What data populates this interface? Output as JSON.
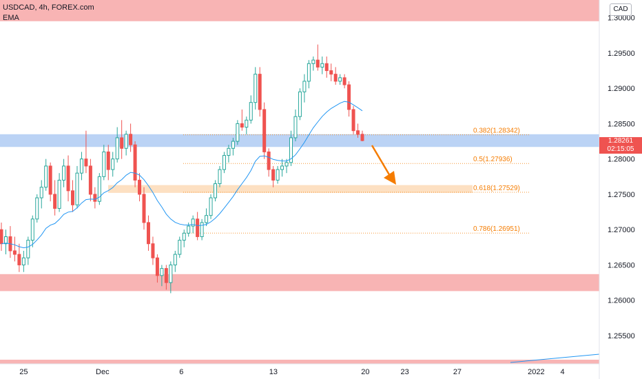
{
  "header": {
    "symbol": "USDCAD, 4h, FOREX.com",
    "indicator": "EMA"
  },
  "currency": "CAD",
  "last_price": {
    "value": "1.28261",
    "countdown": "02:15:05"
  },
  "colors": {
    "up": "#26a69a",
    "down": "#ef5350",
    "candle_up_body": "#ffffff",
    "candle_down_body": "#ef5350",
    "ema": "#2196f3",
    "fib": "#f57c00",
    "zone_red": "#f8b4b4",
    "zone_blue": "#bbd3f5",
    "zone_orange": "#fde0c2"
  },
  "chart_data": {
    "type": "candlestick",
    "title": "USDCAD, 4h, FOREX.com",
    "indicators": [
      "EMA"
    ],
    "y_tick_labels": [
      "1.30000",
      "1.29500",
      "1.29000",
      "1.28500",
      "1.28000",
      "1.27500",
      "1.27000",
      "1.26500",
      "1.26000",
      "1.25500"
    ],
    "y_range": [
      1.251,
      1.3025
    ],
    "x_tick_labels": [
      "25",
      "Dec",
      "6",
      "13",
      "20",
      "23",
      "27",
      "2022",
      "4"
    ],
    "x_tick_dates": [
      25,
      31,
      37,
      44,
      51,
      54,
      58,
      64,
      66
    ],
    "x_range": [
      23.2,
      68.8
    ],
    "last_price": 1.28261,
    "fibonacci": [
      {
        "label": "0.382(1.28342)",
        "level": 1.28342
      },
      {
        "label": "0.5(1.27936)",
        "level": 1.27936
      },
      {
        "label": "0.618(1.27529)",
        "level": 1.27529
      },
      {
        "label": "0.786(1.26951)",
        "level": 1.26951
      }
    ],
    "zones": [
      {
        "name": "resistance-top",
        "from": 1.2995,
        "to": 1.3025
      },
      {
        "name": "support-zone",
        "from": 1.2613,
        "to": 1.2637
      },
      {
        "name": "mid-zone",
        "from": 1.2817,
        "to": 1.2835
      },
      {
        "name": "fib-zone",
        "from": 1.2752,
        "to": 1.2763
      }
    ],
    "candles": [
      [
        1.27,
        1.271,
        1.267,
        1.268
      ],
      [
        1.268,
        1.27,
        1.2665,
        1.269
      ],
      [
        1.269,
        1.2705,
        1.266,
        1.267
      ],
      [
        1.267,
        1.269,
        1.2655,
        1.2665
      ],
      [
        1.2665,
        1.268,
        1.264,
        1.265
      ],
      [
        1.265,
        1.267,
        1.264,
        1.266
      ],
      [
        1.266,
        1.269,
        1.265,
        1.2685
      ],
      [
        1.2685,
        1.272,
        1.2675,
        1.2715
      ],
      [
        1.2715,
        1.275,
        1.271,
        1.2745
      ],
      [
        1.2745,
        1.277,
        1.273,
        1.276
      ],
      [
        1.276,
        1.28,
        1.2755,
        1.279
      ],
      [
        1.279,
        1.2795,
        1.274,
        1.275
      ],
      [
        1.275,
        1.277,
        1.272,
        1.273
      ],
      [
        1.273,
        1.278,
        1.2725,
        1.277
      ],
      [
        1.277,
        1.28,
        1.276,
        1.279
      ],
      [
        1.279,
        1.2805,
        1.274,
        1.2755
      ],
      [
        1.2755,
        1.277,
        1.2725,
        1.2735
      ],
      [
        1.2735,
        1.279,
        1.273,
        1.278
      ],
      [
        1.278,
        1.281,
        1.277,
        1.28
      ],
      [
        1.28,
        1.284,
        1.278,
        1.279
      ],
      [
        1.279,
        1.28,
        1.274,
        1.275
      ],
      [
        1.275,
        1.276,
        1.273,
        1.274
      ],
      [
        1.274,
        1.278,
        1.2735,
        1.2775
      ],
      [
        1.2775,
        1.282,
        1.277,
        1.281
      ],
      [
        1.281,
        1.282,
        1.277,
        1.2785
      ],
      [
        1.2785,
        1.281,
        1.2775,
        1.28
      ],
      [
        1.28,
        1.2845,
        1.2795,
        1.283
      ],
      [
        1.283,
        1.2855,
        1.28,
        1.2815
      ],
      [
        1.2815,
        1.284,
        1.2805,
        1.2835
      ],
      [
        1.2835,
        1.285,
        1.281,
        1.282
      ],
      [
        1.282,
        1.2825,
        1.276,
        1.277
      ],
      [
        1.277,
        1.278,
        1.274,
        1.275
      ],
      [
        1.275,
        1.276,
        1.27,
        1.271
      ],
      [
        1.271,
        1.272,
        1.267,
        1.268
      ],
      [
        1.268,
        1.269,
        1.265,
        1.266
      ],
      [
        1.266,
        1.2665,
        1.2625,
        1.2635
      ],
      [
        1.2635,
        1.265,
        1.262,
        1.2645
      ],
      [
        1.2645,
        1.265,
        1.2615,
        1.2625
      ],
      [
        1.2625,
        1.2655,
        1.261,
        1.265
      ],
      [
        1.265,
        1.267,
        1.264,
        1.2665
      ],
      [
        1.2665,
        1.269,
        1.266,
        1.2685
      ],
      [
        1.2685,
        1.27,
        1.2675,
        1.2695
      ],
      [
        1.2695,
        1.271,
        1.269,
        1.2705
      ],
      [
        1.2705,
        1.272,
        1.2695,
        1.2715
      ],
      [
        1.2715,
        1.2725,
        1.2685,
        1.269
      ],
      [
        1.269,
        1.2715,
        1.2685,
        1.271
      ],
      [
        1.271,
        1.273,
        1.2705,
        1.272
      ],
      [
        1.272,
        1.275,
        1.2715,
        1.2745
      ],
      [
        1.2745,
        1.277,
        1.274,
        1.2765
      ],
      [
        1.2765,
        1.279,
        1.276,
        1.2785
      ],
      [
        1.2785,
        1.281,
        1.278,
        1.2805
      ],
      [
        1.2805,
        1.282,
        1.2795,
        1.2815
      ],
      [
        1.2815,
        1.283,
        1.2805,
        1.2825
      ],
      [
        1.2825,
        1.2855,
        1.282,
        1.285
      ],
      [
        1.285,
        1.287,
        1.284,
        1.2845
      ],
      [
        1.2845,
        1.286,
        1.2835,
        1.2855
      ],
      [
        1.2855,
        1.289,
        1.285,
        1.288
      ],
      [
        1.288,
        1.293,
        1.287,
        1.292
      ],
      [
        1.292,
        1.293,
        1.286,
        1.287
      ],
      [
        1.287,
        1.288,
        1.28,
        1.281
      ],
      [
        1.281,
        1.2815,
        1.2775,
        1.2785
      ],
      [
        1.2785,
        1.279,
        1.276,
        1.277
      ],
      [
        1.277,
        1.279,
        1.2765,
        1.2785
      ],
      [
        1.2785,
        1.28,
        1.2775,
        1.279
      ],
      [
        1.279,
        1.28,
        1.278,
        1.2795
      ],
      [
        1.2795,
        1.284,
        1.279,
        1.283
      ],
      [
        1.283,
        1.287,
        1.2825,
        1.286
      ],
      [
        1.286,
        1.29,
        1.2855,
        1.2895
      ],
      [
        1.2895,
        1.292,
        1.288,
        1.291
      ],
      [
        1.291,
        1.294,
        1.29,
        1.2935
      ],
      [
        1.2935,
        1.2945,
        1.2925,
        1.294
      ],
      [
        1.294,
        1.2962,
        1.2925,
        1.293
      ],
      [
        1.293,
        1.2945,
        1.292,
        1.2935
      ],
      [
        1.2935,
        1.2945,
        1.2915,
        1.2925
      ],
      [
        1.2925,
        1.2935,
        1.291,
        1.292
      ],
      [
        1.292,
        1.293,
        1.2905,
        1.291
      ],
      [
        1.291,
        1.292,
        1.2905,
        1.2915
      ],
      [
        1.2915,
        1.292,
        1.29,
        1.2905
      ],
      [
        1.2905,
        1.291,
        1.286,
        1.287
      ],
      [
        1.287,
        1.2875,
        1.2835,
        1.284
      ],
      [
        1.284,
        1.285,
        1.283,
        1.2835
      ],
      [
        1.2835,
        1.284,
        1.2825,
        1.2826
      ]
    ]
  }
}
